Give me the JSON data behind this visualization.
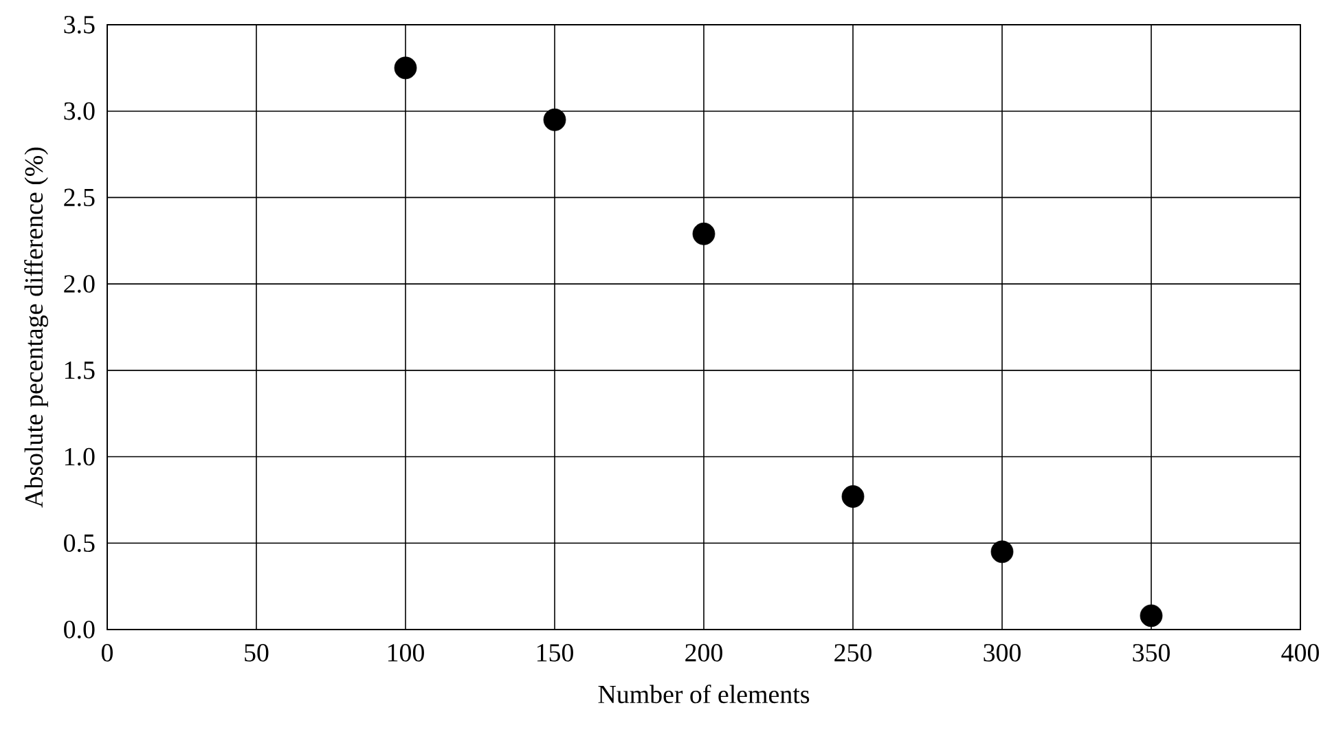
{
  "chart_data": {
    "type": "scatter",
    "xlabel": "Number of elements",
    "ylabel": "Absolute pecentage difference (%)",
    "x": [
      100,
      150,
      200,
      250,
      300,
      350
    ],
    "values": [
      3.25,
      2.95,
      2.29,
      0.77,
      0.45,
      0.08
    ],
    "color": "#000000",
    "marker": "circle",
    "xlim": [
      0,
      400
    ],
    "xticks": [
      0,
      50,
      100,
      150,
      200,
      250,
      300,
      350,
      400
    ],
    "ylim": [
      0,
      3.5
    ],
    "yticks": [
      {
        "value": 0,
        "label": "0.0"
      },
      {
        "value": 0.5,
        "label": "0.5"
      },
      {
        "value": 1,
        "label": "1.0"
      },
      {
        "value": 1.5,
        "label": "1.5"
      },
      {
        "value": 2,
        "label": "2.0"
      },
      {
        "value": 2.5,
        "label": "2.5"
      },
      {
        "value": 3,
        "label": "3.0"
      },
      {
        "value": 3.5,
        "label": "3.5"
      }
    ],
    "grid": true
  }
}
